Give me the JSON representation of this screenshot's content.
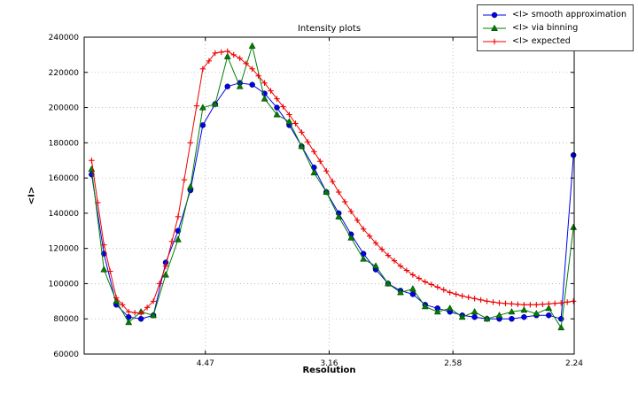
{
  "chart_data": {
    "type": "line",
    "title": "Intensity plots",
    "xlabel": "Resolution",
    "ylabel": "<I>",
    "grid": true,
    "grid_color": "#b3b3b3",
    "frame_color": "#000000",
    "background": "#ffffff",
    "legend_position": "upper right",
    "xlim": [
      0.001,
      0.1993
    ],
    "ylim": [
      60000,
      240000
    ],
    "xticks": [
      {
        "pos": 0.05005,
        "label": "4.47"
      },
      {
        "pos": 0.10014,
        "label": "3.16"
      },
      {
        "pos": 0.15023,
        "label": "2.58"
      },
      {
        "pos": 0.1993,
        "label": "2.24"
      }
    ],
    "yticks": [
      {
        "pos": 60000,
        "label": "60000"
      },
      {
        "pos": 80000,
        "label": "80000"
      },
      {
        "pos": 100000,
        "label": "100000"
      },
      {
        "pos": 120000,
        "label": "120000"
      },
      {
        "pos": 140000,
        "label": "140000"
      },
      {
        "pos": 160000,
        "label": "160000"
      },
      {
        "pos": 180000,
        "label": "180000"
      },
      {
        "pos": 200000,
        "label": "200000"
      },
      {
        "pos": 220000,
        "label": "220000"
      },
      {
        "pos": 240000,
        "label": "240000"
      }
    ],
    "series": [
      {
        "id": "smooth-approximation",
        "name": "<I> smooth approximation",
        "color": "#0000ee",
        "marker": "circle",
        "x": [
          0.004,
          0.009,
          0.014,
          0.019,
          0.024,
          0.029,
          0.034,
          0.039,
          0.044,
          0.049,
          0.054,
          0.059,
          0.064,
          0.069,
          0.074,
          0.079,
          0.084,
          0.089,
          0.094,
          0.099,
          0.104,
          0.109,
          0.114,
          0.119,
          0.124,
          0.129,
          0.134,
          0.139,
          0.144,
          0.149,
          0.154,
          0.159,
          0.164,
          0.169,
          0.174,
          0.179,
          0.184,
          0.189,
          0.194,
          0.199
        ],
        "y": [
          162000,
          117000,
          88000,
          81000,
          80000,
          82000,
          112000,
          130000,
          153000,
          190000,
          202000,
          212000,
          214000,
          213000,
          208000,
          200000,
          190000,
          178000,
          166000,
          152000,
          140000,
          128000,
          117000,
          108000,
          100000,
          96000,
          94000,
          88000,
          86000,
          84000,
          82000,
          81000,
          80000,
          80000,
          80000,
          81000,
          82000,
          82000,
          80000,
          173000
        ]
      },
      {
        "id": "via-binning",
        "name": "<I> via binning",
        "color": "#007f00",
        "marker": "triangle",
        "x": [
          0.004,
          0.009,
          0.014,
          0.019,
          0.024,
          0.029,
          0.034,
          0.039,
          0.044,
          0.049,
          0.054,
          0.059,
          0.064,
          0.069,
          0.074,
          0.079,
          0.084,
          0.089,
          0.094,
          0.099,
          0.104,
          0.109,
          0.114,
          0.119,
          0.124,
          0.129,
          0.134,
          0.139,
          0.144,
          0.149,
          0.154,
          0.159,
          0.164,
          0.169,
          0.174,
          0.179,
          0.184,
          0.189,
          0.194,
          0.199
        ],
        "y": [
          165000,
          108000,
          90000,
          78000,
          84000,
          82000,
          105000,
          125000,
          155000,
          200000,
          202000,
          229000,
          212000,
          235000,
          205000,
          196000,
          192000,
          178000,
          163000,
          152000,
          138000,
          126000,
          114000,
          110000,
          100000,
          95000,
          97000,
          87000,
          84000,
          86000,
          81000,
          84000,
          80000,
          82000,
          84000,
          85000,
          83000,
          86000,
          75000,
          132000
        ]
      },
      {
        "id": "expected",
        "name": "<I> expected",
        "color": "#ee0000",
        "marker": "plus",
        "x": [
          0.004,
          0.0065,
          0.009,
          0.0115,
          0.014,
          0.0165,
          0.019,
          0.0215,
          0.024,
          0.0265,
          0.029,
          0.0315,
          0.034,
          0.0365,
          0.039,
          0.0415,
          0.044,
          0.0465,
          0.049,
          0.0515,
          0.054,
          0.0565,
          0.059,
          0.0615,
          0.064,
          0.0665,
          0.069,
          0.0715,
          0.074,
          0.0765,
          0.079,
          0.0815,
          0.084,
          0.0865,
          0.089,
          0.0915,
          0.094,
          0.0965,
          0.099,
          0.1015,
          0.104,
          0.1065,
          0.109,
          0.1115,
          0.114,
          0.1165,
          0.119,
          0.1215,
          0.124,
          0.1265,
          0.129,
          0.1315,
          0.134,
          0.1365,
          0.139,
          0.1415,
          0.144,
          0.1465,
          0.149,
          0.1515,
          0.154,
          0.1565,
          0.159,
          0.1615,
          0.164,
          0.1665,
          0.169,
          0.1715,
          0.174,
          0.1765,
          0.179,
          0.1815,
          0.184,
          0.1865,
          0.189,
          0.1915,
          0.194,
          0.1965,
          0.199
        ],
        "y": [
          170000,
          146000,
          122000,
          107000,
          92000,
          88000,
          84000,
          83500,
          83000,
          86500,
          90000,
          100000,
          110000,
          124000,
          138000,
          159000,
          180000,
          201000,
          222000,
          226500,
          231000,
          231500,
          232000,
          230000,
          228000,
          225000,
          222000,
          218000,
          214000,
          209500,
          205000,
          200500,
          196000,
          191000,
          186000,
          180500,
          175000,
          169500,
          164000,
          158000,
          152000,
          146500,
          141000,
          136000,
          131000,
          127000,
          123000,
          119500,
          116000,
          113000,
          110000,
          107500,
          105000,
          103000,
          101000,
          99500,
          98000,
          96500,
          95000,
          94000,
          93000,
          92250,
          91500,
          90750,
          90000,
          89500,
          89000,
          88750,
          88500,
          88250,
          88000,
          88000,
          88000,
          88250,
          88500,
          88750,
          89000,
          89500,
          90000
        ]
      }
    ]
  }
}
